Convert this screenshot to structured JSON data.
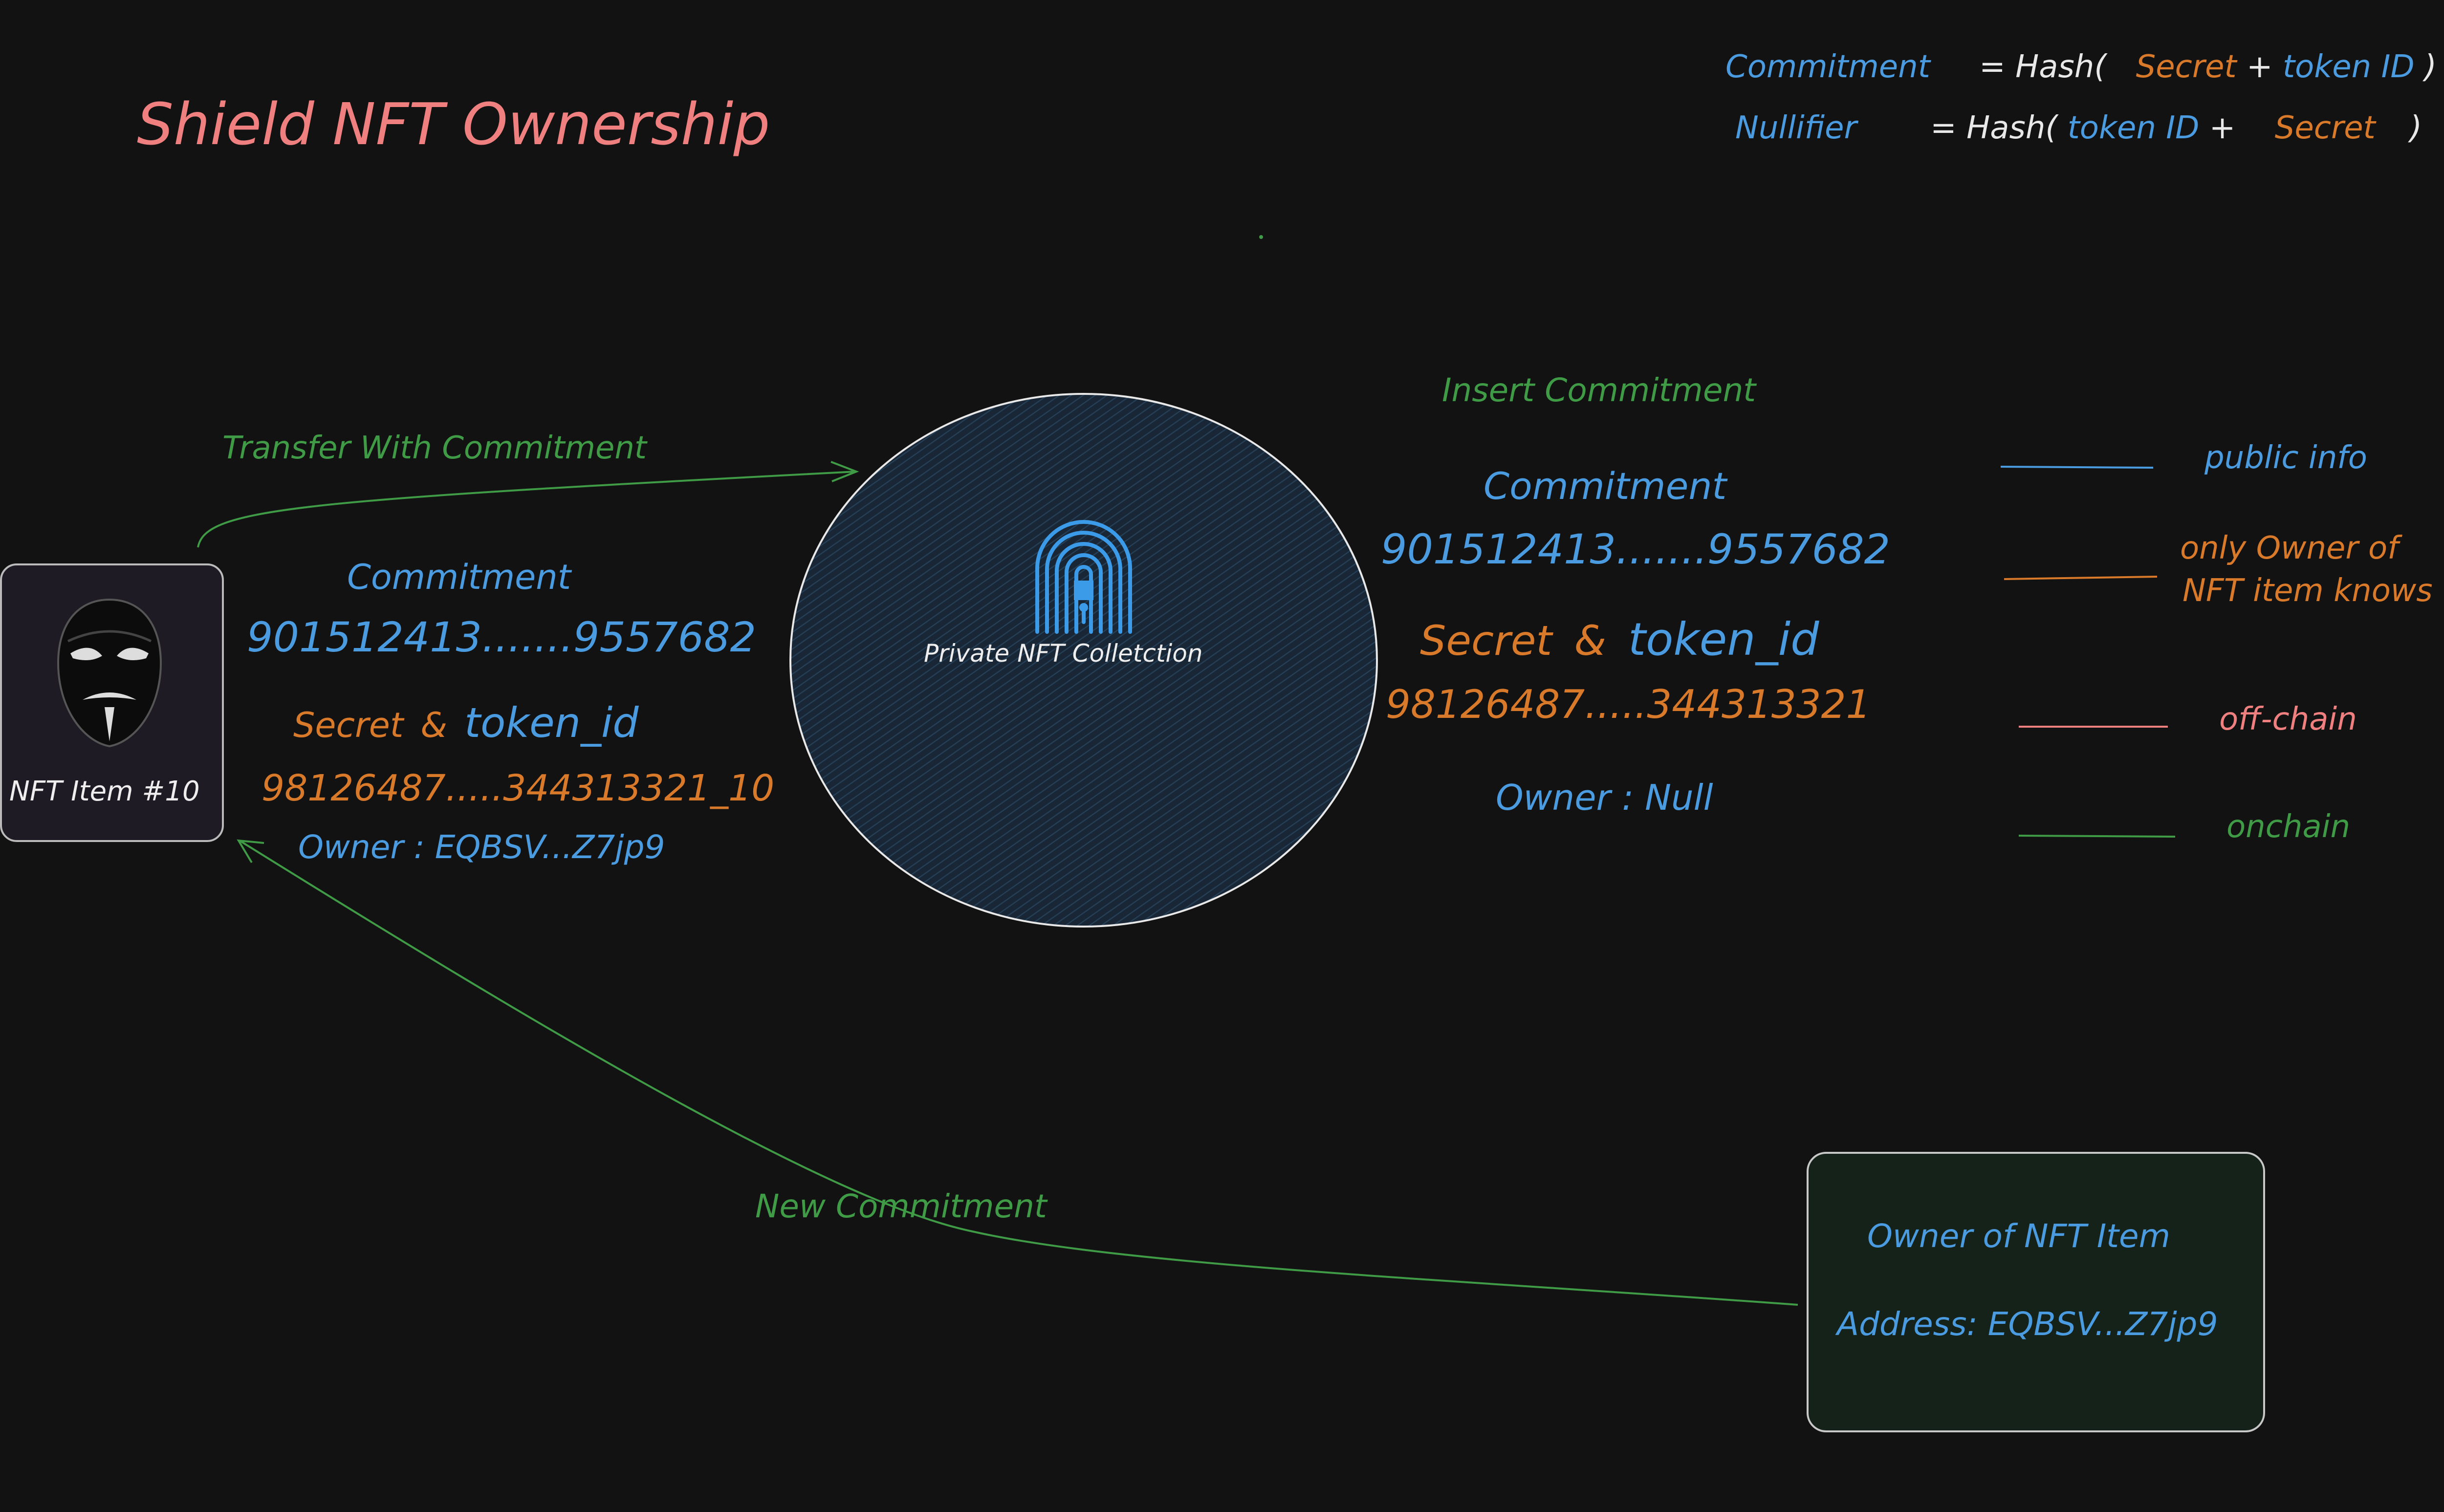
{
  "title": "Shield NFT Ownership",
  "formulas": {
    "commitment": {
      "label": "Commitment",
      "eq": "= Hash(",
      "a": "Secret",
      "plus": "+",
      "b": "token ID",
      "close": ")"
    },
    "nullifier": {
      "label": "Nullifier",
      "eq": "= Hash(",
      "a": "token ID",
      "plus": "+",
      "b": "Secret",
      "close": ")"
    }
  },
  "nft_item": {
    "label": "NFT Item #10",
    "icon": "anonymous-mask-icon",
    "commitment_label": "Commitment",
    "commitment_value": "901512413.......9557682",
    "secret_label": "Secret",
    "amp": "&",
    "token_label": "token_id",
    "secret_value": "98126487.....344313321_10",
    "owner": "Owner : EQBSV...Z7jp9"
  },
  "collection": {
    "label": "Private NFT Colletction",
    "icon": "fingerprint-lock-icon"
  },
  "collection_info": {
    "insert": "Insert Commitment",
    "commitment_label": "Commitment",
    "commitment_value": "901512413.......9557682",
    "secret_label": "Secret",
    "amp": "&",
    "token_label": "token_id",
    "secret_value": "98126487.....344313321",
    "owner": "Owner : Null"
  },
  "arrows": {
    "transfer": "Transfer With Commitment",
    "new_commitment": "New Commitment"
  },
  "owner_card": {
    "title": "Owner of NFT Item",
    "address": "Address: EQBSV...Z7jp9"
  },
  "legend": [
    {
      "label": "public info",
      "color": "#4a9be0"
    },
    {
      "label_1": "only Owner of",
      "label_2": "NFT item knows",
      "color": "#d9792a"
    },
    {
      "label": "off-chain",
      "color": "#f08080"
    },
    {
      "label": "onchain",
      "color": "#3f9b45"
    }
  ],
  "colors": {
    "background": "#121212",
    "public": "#4a9be0",
    "private": "#d9792a",
    "offchain": "#f08080",
    "onchain": "#3f9b45"
  }
}
